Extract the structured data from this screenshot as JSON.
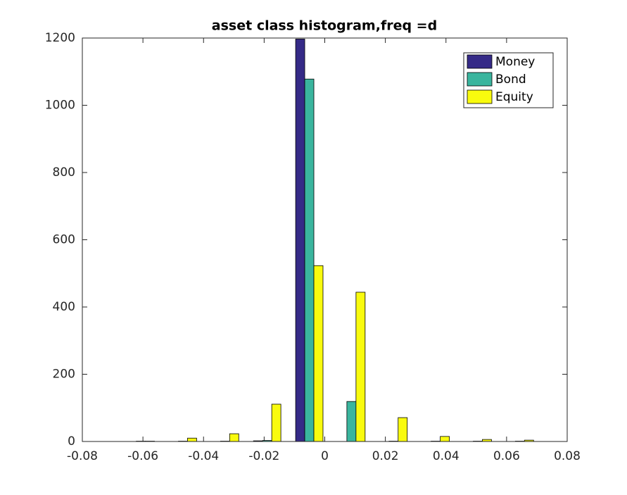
{
  "chart_data": {
    "type": "bar",
    "title": "asset class histogram,freq =d",
    "x": [
      -0.0607,
      -0.0468,
      -0.0329,
      -0.019,
      -0.0051,
      0.0088,
      0.0227,
      0.0366,
      0.0505,
      0.0644
    ],
    "series": [
      {
        "name": "Money",
        "color": "#352a87",
        "values": [
          0,
          0,
          0,
          2,
          1197,
          0,
          0,
          0,
          0,
          0
        ]
      },
      {
        "name": "Bond",
        "color": "#3ab59e",
        "values": [
          1,
          1,
          1,
          3,
          1078,
          119,
          1,
          1,
          1,
          1
        ]
      },
      {
        "name": "Equity",
        "color": "#f9fb0e",
        "values": [
          1,
          10,
          23,
          111,
          523,
          444,
          71,
          15,
          6,
          4
        ]
      }
    ],
    "xlim": [
      -0.08,
      0.08
    ],
    "xticks": [
      -0.08,
      -0.06,
      -0.04,
      -0.02,
      0,
      0.02,
      0.04,
      0.06,
      0.08
    ],
    "ylim": [
      0,
      1200
    ],
    "yticks": [
      0,
      200,
      400,
      600,
      800,
      1000,
      1200
    ],
    "legend": "upper right"
  }
}
